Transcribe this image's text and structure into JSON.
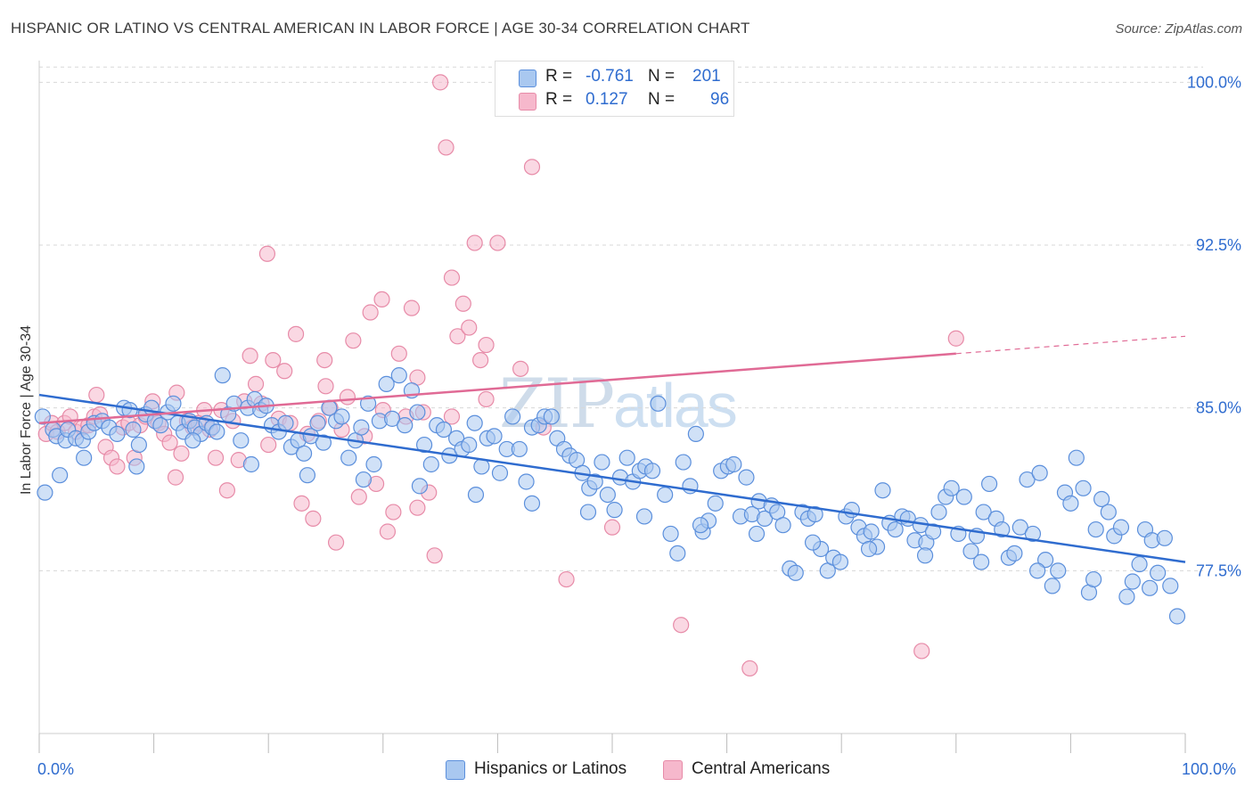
{
  "header": {
    "title": "HISPANIC OR LATINO VS CENTRAL AMERICAN IN LABOR FORCE | AGE 30-34 CORRELATION CHART",
    "source": "Source: ZipAtlas.com"
  },
  "watermark": {
    "zip": "ZIP",
    "atlas": "atlas"
  },
  "legend": {
    "rows": [
      {
        "r_label": "R =",
        "r_value": "-0.761",
        "n_label": "N =",
        "n_value": "201",
        "color": "#a9c8f0"
      },
      {
        "r_label": "R =",
        "r_value": "0.127",
        "n_label": "N =",
        "n_value": "96",
        "color": "#f6b8cc"
      }
    ]
  },
  "bottom_legend": {
    "series1": "Hispanics or Latinos",
    "series2": "Central Americans"
  },
  "chart_data": {
    "type": "scatter",
    "title": "HISPANIC OR LATINO VS CENTRAL AMERICAN IN LABOR FORCE | AGE 30-34 CORRELATION CHART",
    "xlabel": "",
    "ylabel": "In Labor Force | Age 30-34",
    "xlim": [
      0,
      100
    ],
    "ylim": [
      70.0,
      101.0
    ],
    "x_tick_labels": [
      "0.0%",
      "100.0%"
    ],
    "y_ticks": [
      77.5,
      85.0,
      92.5,
      100.0
    ],
    "y_tick_labels": [
      "77.5%",
      "85.0%",
      "92.5%",
      "100.0%"
    ],
    "grid": true,
    "colors": {
      "blue_fill": "#a9c8f0",
      "blue_stroke": "#5b8fdc",
      "blue_line": "#2f6ccf",
      "pink_fill": "#f6b8cc",
      "pink_stroke": "#e78ba8",
      "pink_line": "#e06a95"
    },
    "series": [
      {
        "name": "Hispanics or Latinos",
        "trend": {
          "x": [
            0,
            100
          ],
          "y": [
            85.6,
            77.9
          ]
        },
        "points": [
          [
            0.5,
            81.1
          ],
          [
            1.2,
            84.0
          ],
          [
            1.5,
            83.7
          ],
          [
            1.8,
            81.9
          ],
          [
            2.3,
            83.5
          ],
          [
            2.5,
            84.0
          ],
          [
            3.2,
            83.6
          ],
          [
            3.8,
            83.5
          ],
          [
            4.3,
            83.9
          ],
          [
            4.8,
            84.3
          ],
          [
            5.5,
            84.4
          ],
          [
            6.1,
            84.1
          ],
          [
            6.8,
            83.8
          ],
          [
            7.4,
            85.0
          ],
          [
            7.9,
            84.9
          ],
          [
            8.2,
            84.0
          ],
          [
            8.7,
            83.3
          ],
          [
            9.3,
            84.7
          ],
          [
            9.8,
            85.0
          ],
          [
            10.1,
            84.4
          ],
          [
            10.6,
            84.2
          ],
          [
            11.2,
            84.8
          ],
          [
            11.7,
            85.2
          ],
          [
            12.1,
            84.3
          ],
          [
            12.6,
            83.9
          ],
          [
            13.1,
            84.4
          ],
          [
            13.6,
            84.1
          ],
          [
            14.1,
            83.8
          ],
          [
            14.6,
            84.3
          ],
          [
            15.1,
            84.1
          ],
          [
            15.5,
            83.9
          ],
          [
            16.0,
            86.5
          ],
          [
            16.5,
            84.7
          ],
          [
            17.0,
            85.2
          ],
          [
            17.6,
            83.5
          ],
          [
            18.2,
            85.0
          ],
          [
            18.8,
            85.4
          ],
          [
            19.3,
            84.9
          ],
          [
            19.8,
            85.1
          ],
          [
            20.3,
            84.2
          ],
          [
            20.9,
            83.9
          ],
          [
            21.5,
            84.3
          ],
          [
            22.0,
            83.2
          ],
          [
            22.6,
            83.5
          ],
          [
            23.1,
            82.9
          ],
          [
            23.7,
            83.7
          ],
          [
            24.3,
            84.3
          ],
          [
            24.8,
            83.4
          ],
          [
            25.3,
            85.0
          ],
          [
            25.9,
            84.4
          ],
          [
            26.4,
            84.6
          ],
          [
            27.0,
            82.7
          ],
          [
            27.6,
            83.5
          ],
          [
            28.1,
            84.1
          ],
          [
            28.7,
            85.2
          ],
          [
            29.2,
            82.4
          ],
          [
            29.7,
            84.4
          ],
          [
            30.3,
            86.1
          ],
          [
            30.8,
            84.5
          ],
          [
            31.4,
            86.5
          ],
          [
            31.9,
            84.2
          ],
          [
            32.5,
            85.8
          ],
          [
            33.0,
            84.8
          ],
          [
            33.6,
            83.3
          ],
          [
            34.2,
            82.4
          ],
          [
            34.7,
            84.2
          ],
          [
            35.3,
            84.0
          ],
          [
            35.8,
            82.8
          ],
          [
            36.4,
            83.6
          ],
          [
            36.9,
            83.1
          ],
          [
            37.5,
            83.3
          ],
          [
            38.0,
            84.3
          ],
          [
            38.6,
            82.3
          ],
          [
            39.1,
            83.6
          ],
          [
            39.7,
            83.7
          ],
          [
            40.2,
            82.0
          ],
          [
            40.8,
            83.1
          ],
          [
            41.3,
            84.6
          ],
          [
            41.9,
            83.1
          ],
          [
            42.5,
            81.6
          ],
          [
            43.0,
            84.1
          ],
          [
            43.6,
            84.2
          ],
          [
            44.1,
            84.6
          ],
          [
            44.7,
            84.6
          ],
          [
            45.2,
            83.6
          ],
          [
            45.8,
            83.1
          ],
          [
            46.3,
            82.8
          ],
          [
            46.9,
            82.6
          ],
          [
            47.4,
            82.0
          ],
          [
            48.0,
            81.3
          ],
          [
            48.5,
            81.6
          ],
          [
            49.1,
            82.5
          ],
          [
            49.6,
            81.0
          ],
          [
            50.2,
            80.3
          ],
          [
            50.7,
            81.8
          ],
          [
            51.3,
            82.7
          ],
          [
            51.8,
            81.6
          ],
          [
            52.4,
            82.1
          ],
          [
            52.9,
            82.3
          ],
          [
            53.5,
            82.1
          ],
          [
            54.0,
            85.2
          ],
          [
            54.6,
            81.0
          ],
          [
            55.1,
            79.2
          ],
          [
            55.7,
            78.3
          ],
          [
            56.2,
            82.5
          ],
          [
            56.8,
            81.4
          ],
          [
            57.3,
            83.8
          ],
          [
            57.9,
            79.3
          ],
          [
            58.4,
            79.8
          ],
          [
            59.0,
            80.6
          ],
          [
            59.5,
            82.1
          ],
          [
            60.1,
            82.3
          ],
          [
            60.6,
            82.4
          ],
          [
            61.2,
            80.0
          ],
          [
            61.7,
            81.8
          ],
          [
            62.2,
            80.1
          ],
          [
            62.8,
            80.7
          ],
          [
            63.3,
            79.9
          ],
          [
            63.9,
            80.5
          ],
          [
            64.4,
            80.2
          ],
          [
            64.9,
            79.6
          ],
          [
            65.5,
            77.6
          ],
          [
            66.0,
            77.4
          ],
          [
            66.6,
            80.2
          ],
          [
            67.1,
            79.9
          ],
          [
            67.7,
            80.1
          ],
          [
            68.2,
            78.5
          ],
          [
            68.8,
            77.5
          ],
          [
            69.3,
            78.1
          ],
          [
            69.9,
            77.9
          ],
          [
            70.4,
            80.0
          ],
          [
            70.9,
            80.3
          ],
          [
            71.5,
            79.5
          ],
          [
            72.0,
            79.1
          ],
          [
            72.6,
            79.3
          ],
          [
            73.1,
            78.6
          ],
          [
            73.6,
            81.2
          ],
          [
            74.2,
            79.7
          ],
          [
            74.7,
            79.4
          ],
          [
            75.3,
            80.0
          ],
          [
            75.8,
            79.9
          ],
          [
            76.4,
            78.9
          ],
          [
            76.9,
            79.6
          ],
          [
            77.4,
            78.8
          ],
          [
            78.0,
            79.3
          ],
          [
            78.5,
            80.2
          ],
          [
            79.1,
            80.9
          ],
          [
            79.6,
            81.3
          ],
          [
            80.2,
            79.2
          ],
          [
            80.7,
            80.9
          ],
          [
            81.3,
            78.4
          ],
          [
            81.8,
            79.1
          ],
          [
            82.4,
            80.2
          ],
          [
            82.9,
            81.5
          ],
          [
            83.5,
            79.9
          ],
          [
            84.0,
            79.4
          ],
          [
            84.6,
            78.1
          ],
          [
            85.1,
            78.3
          ],
          [
            85.6,
            79.5
          ],
          [
            86.2,
            81.7
          ],
          [
            86.7,
            79.2
          ],
          [
            87.3,
            82.0
          ],
          [
            87.8,
            78.0
          ],
          [
            88.4,
            76.8
          ],
          [
            88.9,
            77.5
          ],
          [
            89.5,
            81.1
          ],
          [
            90.0,
            80.6
          ],
          [
            90.5,
            82.7
          ],
          [
            91.1,
            81.3
          ],
          [
            91.6,
            76.5
          ],
          [
            92.2,
            79.4
          ],
          [
            92.7,
            80.8
          ],
          [
            93.3,
            80.2
          ],
          [
            93.8,
            79.1
          ],
          [
            94.4,
            79.5
          ],
          [
            94.9,
            76.3
          ],
          [
            95.4,
            77.0
          ],
          [
            96.0,
            77.8
          ],
          [
            96.5,
            79.4
          ],
          [
            97.1,
            78.9
          ],
          [
            97.6,
            77.4
          ],
          [
            98.2,
            79.0
          ],
          [
            98.7,
            76.8
          ],
          [
            99.3,
            75.4
          ],
          [
            3.9,
            82.7
          ],
          [
            8.5,
            82.3
          ],
          [
            13.4,
            83.5
          ],
          [
            18.5,
            82.4
          ],
          [
            23.4,
            81.9
          ],
          [
            28.3,
            81.7
          ],
          [
            33.2,
            81.4
          ],
          [
            38.1,
            81.0
          ],
          [
            43.0,
            80.6
          ],
          [
            47.9,
            80.2
          ],
          [
            52.8,
            80.0
          ],
          [
            57.7,
            79.6
          ],
          [
            62.6,
            79.2
          ],
          [
            67.5,
            78.8
          ],
          [
            72.4,
            78.5
          ],
          [
            77.3,
            78.2
          ],
          [
            82.2,
            77.9
          ],
          [
            87.1,
            77.5
          ],
          [
            92.0,
            77.1
          ],
          [
            96.9,
            76.7
          ],
          [
            0.3,
            84.6
          ]
        ]
      },
      {
        "name": "Central Americans",
        "trend": {
          "x": [
            0,
            100
          ],
          "y": [
            84.3,
            88.3
          ],
          "solid_until": 80
        },
        "points": [
          [
            0.6,
            83.8
          ],
          [
            1.1,
            84.3
          ],
          [
            1.6,
            83.9
          ],
          [
            2.2,
            84.3
          ],
          [
            2.7,
            84.6
          ],
          [
            3.2,
            83.9
          ],
          [
            3.8,
            84.1
          ],
          [
            4.3,
            84.2
          ],
          [
            4.8,
            84.6
          ],
          [
            5.3,
            84.7
          ],
          [
            5.8,
            83.2
          ],
          [
            6.3,
            82.7
          ],
          [
            6.8,
            82.3
          ],
          [
            7.3,
            84.1
          ],
          [
            7.8,
            84.3
          ],
          [
            8.3,
            82.7
          ],
          [
            8.8,
            84.2
          ],
          [
            9.3,
            84.6
          ],
          [
            9.9,
            85.3
          ],
          [
            10.4,
            84.3
          ],
          [
            10.9,
            83.8
          ],
          [
            11.4,
            83.4
          ],
          [
            11.9,
            81.8
          ],
          [
            12.4,
            82.9
          ],
          [
            12.9,
            84.4
          ],
          [
            13.4,
            84.1
          ],
          [
            13.9,
            84.3
          ],
          [
            14.4,
            84.9
          ],
          [
            14.9,
            84.0
          ],
          [
            15.4,
            82.7
          ],
          [
            15.9,
            84.9
          ],
          [
            16.4,
            81.2
          ],
          [
            16.9,
            84.4
          ],
          [
            17.4,
            82.6
          ],
          [
            17.9,
            85.3
          ],
          [
            18.4,
            87.4
          ],
          [
            18.9,
            86.1
          ],
          [
            19.4,
            85.2
          ],
          [
            19.9,
            92.1
          ],
          [
            20.4,
            87.2
          ],
          [
            20.9,
            84.5
          ],
          [
            21.4,
            86.7
          ],
          [
            21.9,
            84.3
          ],
          [
            22.4,
            88.4
          ],
          [
            22.9,
            80.6
          ],
          [
            23.4,
            83.8
          ],
          [
            23.9,
            79.9
          ],
          [
            24.4,
            84.4
          ],
          [
            24.9,
            87.2
          ],
          [
            25.4,
            85.0
          ],
          [
            25.9,
            78.8
          ],
          [
            26.4,
            84.0
          ],
          [
            26.9,
            85.5
          ],
          [
            27.4,
            88.1
          ],
          [
            27.9,
            80.9
          ],
          [
            28.4,
            83.7
          ],
          [
            28.9,
            89.4
          ],
          [
            29.4,
            81.5
          ],
          [
            29.9,
            90.0
          ],
          [
            30.4,
            79.3
          ],
          [
            30.9,
            80.2
          ],
          [
            31.4,
            87.5
          ],
          [
            32.0,
            84.6
          ],
          [
            32.5,
            89.6
          ],
          [
            33.0,
            80.4
          ],
          [
            33.5,
            84.8
          ],
          [
            34.0,
            81.1
          ],
          [
            34.5,
            78.2
          ],
          [
            35.0,
            100.0
          ],
          [
            35.5,
            97.0
          ],
          [
            36.0,
            91.0
          ],
          [
            36.5,
            88.3
          ],
          [
            37.0,
            89.8
          ],
          [
            37.5,
            88.7
          ],
          [
            38.0,
            92.6
          ],
          [
            38.5,
            87.2
          ],
          [
            39.0,
            87.9
          ],
          [
            40.0,
            92.6
          ],
          [
            41.0,
            100.0
          ],
          [
            42.0,
            86.8
          ],
          [
            43.0,
            96.1
          ],
          [
            46.0,
            77.1
          ],
          [
            50.0,
            79.5
          ],
          [
            56.0,
            75.0
          ],
          [
            62.0,
            73.0
          ],
          [
            77.0,
            73.8
          ],
          [
            80.0,
            88.2
          ],
          [
            5.0,
            85.6
          ],
          [
            12.0,
            85.7
          ],
          [
            20.0,
            83.3
          ],
          [
            25.0,
            86.0
          ],
          [
            30.0,
            84.9
          ],
          [
            33.0,
            86.4
          ],
          [
            36.0,
            84.6
          ],
          [
            39.0,
            85.4
          ],
          [
            44.0,
            84.1
          ]
        ]
      }
    ]
  }
}
